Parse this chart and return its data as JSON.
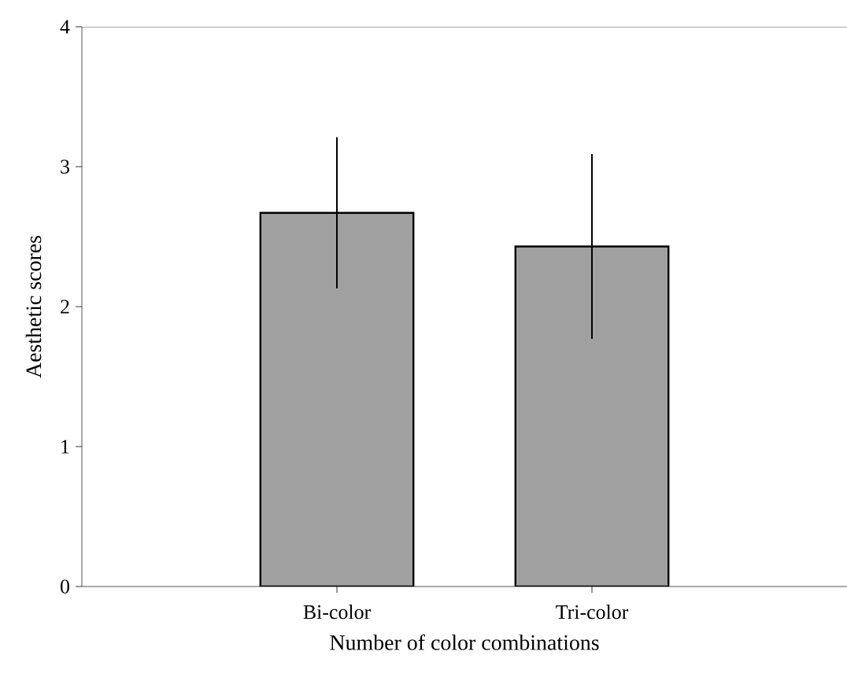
{
  "chart_data": {
    "type": "bar",
    "xlabel": "Number of color combinations",
    "ylabel": "Aesthetic scores",
    "categories": [
      "Bi-color",
      "Tri-color"
    ],
    "values": [
      2.67,
      2.43
    ],
    "errors": [
      0.54,
      0.66
    ],
    "color": "#a0a0a0",
    "ylim": [
      0,
      4
    ],
    "yticks": [
      0,
      1,
      2,
      3,
      4
    ],
    "grid": false
  }
}
